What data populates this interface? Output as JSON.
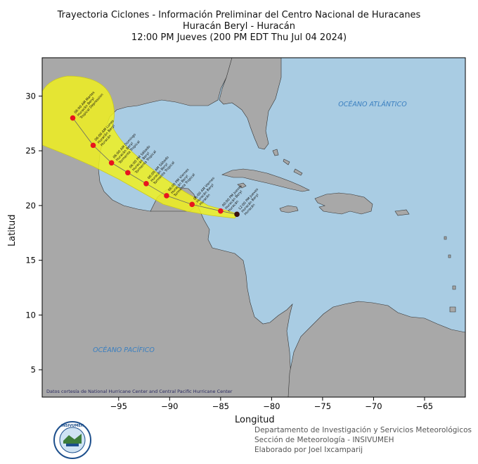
{
  "title": {
    "line1": "Trayectoria Ciclones - Información Preliminar del Centro Nacional de Huracanes",
    "line2": "Huracán Beryl - Huracán",
    "line3": "12:00 PM Jueves (200 PM EDT Thu Jul 04 2024)"
  },
  "axes": {
    "xlabel": "Longitud",
    "ylabel": "Latitud",
    "xticks": [
      "−95",
      "−90",
      "−85",
      "−80",
      "−75",
      "−70",
      "−65"
    ],
    "yticks": [
      "5",
      "10",
      "15",
      "20",
      "25",
      "30"
    ],
    "xlim": [
      -102.5,
      -61
    ],
    "ylim": [
      2.5,
      33.5
    ]
  },
  "labels": {
    "atlantic": "OCÉANO ATLÁNTICO",
    "pacific": "OCÉANO PACÍFICO",
    "credit": "Datos cortesía de National Hurricane Center and Central Pacific Hurricane Center"
  },
  "colors": {
    "ocean": "#a9cce3",
    "land": "#a8a8a8",
    "cone": "#f0f01e",
    "point": "#e8141e",
    "current": "#3a1010",
    "ocean_label": "#3a7fc0"
  },
  "track": [
    {
      "lon": -83.4,
      "lat": 19.2,
      "label": [
        "12:00 PM Jueves",
        "Huracán Beryl",
        "Huracán"
      ],
      "current": true
    },
    {
      "lon": -85.0,
      "lat": 19.5,
      "label": [
        "00:00 PM Jueves",
        "Huracán Beryl",
        "Huracán"
      ]
    },
    {
      "lon": -87.8,
      "lat": 20.1,
      "label": [
        "06:00 AM Viernes",
        "Huracán Beryl",
        "Huracán"
      ]
    },
    {
      "lon": -90.3,
      "lat": 20.9,
      "label": [
        "06:00 PM Viernes",
        "Huracán Beryl",
        "Tormenta Tropical"
      ]
    },
    {
      "lon": -92.3,
      "lat": 22.0,
      "label": [
        "06:00 AM Sábado",
        "Huracán Beryl",
        "Tormenta Tropical"
      ]
    },
    {
      "lon": -94.1,
      "lat": 23.0,
      "label": [
        "06:00 PM Sábado",
        "Huracán Beryl",
        "Tormenta Tropical"
      ]
    },
    {
      "lon": -95.7,
      "lat": 23.9,
      "label": [
        "06:00 AM Domingo",
        "Huracán Beryl",
        "Tormenta Tropical"
      ]
    },
    {
      "lon": -97.5,
      "lat": 25.5,
      "label": [
        "06:00 AM Lunes",
        "Huracán Beryl",
        "Huracán"
      ]
    },
    {
      "lon": -99.5,
      "lat": 28.0,
      "label": [
        "06:00 AM Martes",
        "Huracán Beryl",
        "Tropical Depression"
      ]
    }
  ],
  "footer": {
    "line1": "Departamento de Investigación y Servicios Meteorológicos",
    "line2": "Sección de Meteorología - INSIVUMEH",
    "line3": "Elaborado por Joel Ixcamparij"
  },
  "logo": {
    "text": "INSIVUMEH"
  }
}
